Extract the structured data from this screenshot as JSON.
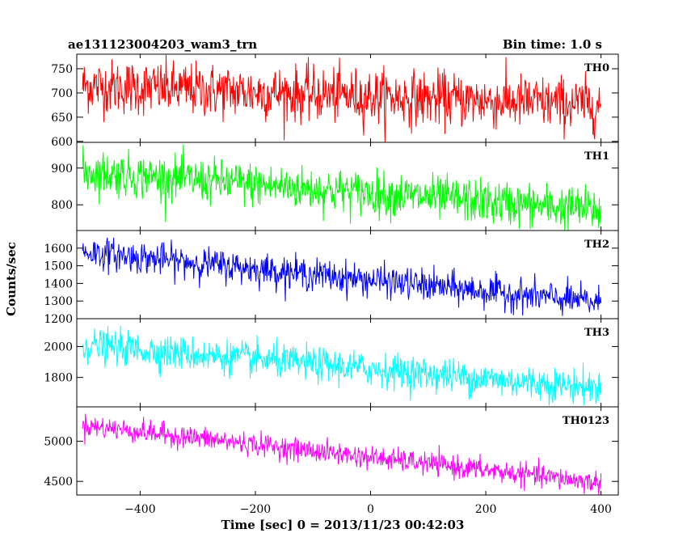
{
  "header": {
    "left_title": "ae131123004203_wam3_trn",
    "right_title": "Bin time: 1.0 s"
  },
  "chart_data": {
    "type": "line",
    "xlabel": "Time [sec] 0 = 2013/11/23 00:42:03",
    "ylabel": "Counts/sec",
    "xlim": [
      -510,
      430
    ],
    "x_ticks": [
      -400,
      -200,
      0,
      200,
      400
    ],
    "x_range": [
      -500,
      400
    ],
    "bin_time": 1.0,
    "panels": [
      {
        "name": "TH0",
        "color": "#ff0000",
        "ylim": [
          598,
          780
        ],
        "y_ticks": [
          600,
          650,
          700,
          750
        ],
        "trend_start": 715,
        "trend_end": 675,
        "noise": 28
      },
      {
        "name": "TH1",
        "color": "#00ff00",
        "ylim": [
          730,
          970
        ],
        "y_ticks": [
          800,
          900
        ],
        "trend_start": 890,
        "trend_end": 785,
        "noise": 30
      },
      {
        "name": "TH2",
        "color": "#0000ff",
        "ylim": [
          1200,
          1700
        ],
        "y_ticks": [
          1200,
          1300,
          1400,
          1500,
          1600
        ],
        "trend_start": 1580,
        "trend_end": 1290,
        "noise": 45
      },
      {
        "name": "TH3",
        "color": "#00ffff",
        "ylim": [
          1610,
          2180
        ],
        "y_ticks": [
          1800,
          2000
        ],
        "trend_start": 2010,
        "trend_end": 1730,
        "noise": 55
      },
      {
        "name": "TH0123",
        "color": "#ff00ff",
        "ylim": [
          4330,
          5430
        ],
        "y_ticks": [
          4500,
          5000
        ],
        "trend_start": 5200,
        "trend_end": 4480,
        "noise": 70
      }
    ]
  }
}
